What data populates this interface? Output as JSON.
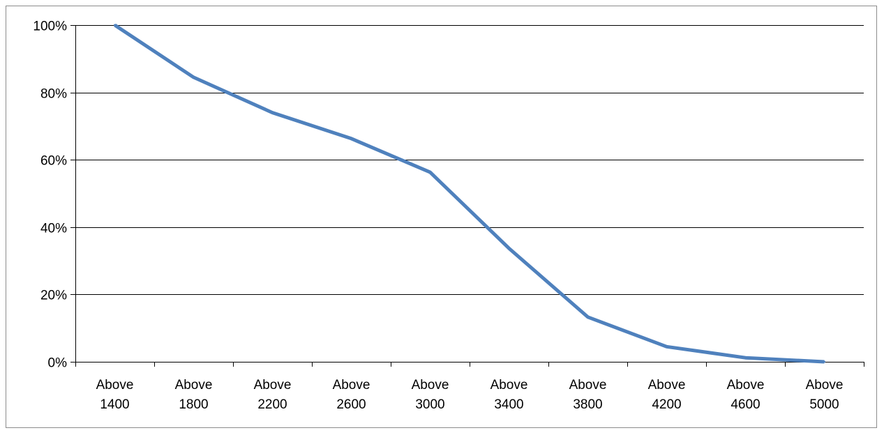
{
  "chart_data": {
    "type": "line",
    "title": "",
    "xlabel": "",
    "ylabel": "",
    "categories": [
      [
        "Above",
        "1400"
      ],
      [
        "Above",
        "1800"
      ],
      [
        "Above",
        "2200"
      ],
      [
        "Above",
        "2600"
      ],
      [
        "Above",
        "3000"
      ],
      [
        "Above",
        "3400"
      ],
      [
        "Above",
        "3800"
      ],
      [
        "Above",
        "4200"
      ],
      [
        "Above",
        "4600"
      ],
      [
        "Above",
        "5000"
      ]
    ],
    "series": [
      {
        "values": [
          100,
          84.5,
          74,
          66.3,
          56.3,
          33.7,
          13.3,
          4.5,
          1.2,
          0
        ],
        "color": "#4f81bd"
      }
    ],
    "ylim": [
      0,
      100
    ],
    "yticks": [
      0,
      20,
      40,
      60,
      80,
      100
    ],
    "ytick_labels": [
      "0%",
      "20%",
      "40%",
      "60%",
      "80%",
      "100%"
    ],
    "grid": "horizontal",
    "legend": "none"
  }
}
